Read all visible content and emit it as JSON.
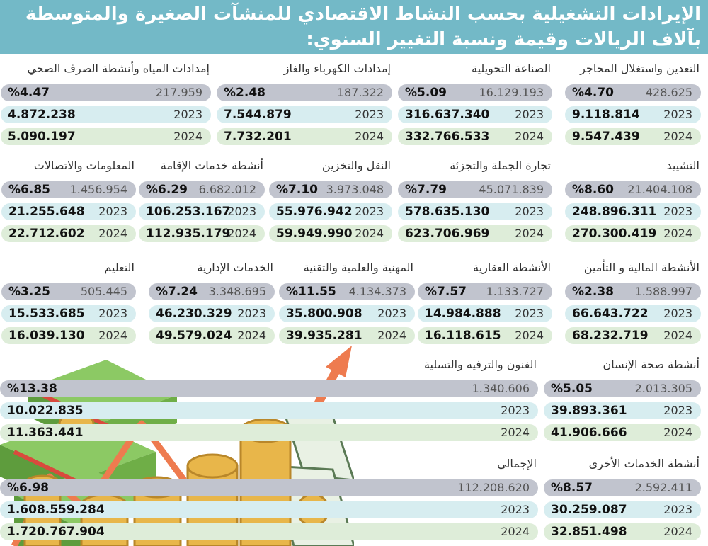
{
  "title": "الإيرادات التشغيلية بحسب النشاط الاقتصادي للمنشآت الصغيرة والمتوسطة بآلاف الريالات وقيمة ونسبة التغيير السنوي:",
  "chart_data": {
    "type": "table",
    "title": "الإيرادات التشغيلية بحسب النشاط الاقتصادي للمنشآت الصغيرة والمتوسطة بآلاف الريالات وقيمة ونسبة التغيير السنوي:",
    "years": [
      "2023",
      "2024"
    ],
    "sectors": [
      {
        "name": "التعدين واستغلال المحاجر",
        "v2023": "9.118.814",
        "v2024": "9.547.439",
        "change": "428.625",
        "pct": "%4.70"
      },
      {
        "name": "الصناعة التحويلية",
        "v2023": "316.637.340",
        "v2024": "332.766.533",
        "change": "16.129.193",
        "pct": "%5.09"
      },
      {
        "name": "إمدادات الكهرباء والغاز",
        "v2023": "7.544.879",
        "v2024": "7.732.201",
        "change": "187.322",
        "pct": "%2.48"
      },
      {
        "name": "إمدادات المياه وأنشطة الصرف الصحي",
        "v2023": "4.872.238",
        "v2024": "5.090.197",
        "change": "217.959",
        "pct": "%4.47"
      },
      {
        "name": "التشييد",
        "v2023": "248.896.311",
        "v2024": "270.300.419",
        "change": "21.404.108",
        "pct": "%8.60"
      },
      {
        "name": "تجارة الجملة والتجزئة",
        "v2023": "578.635.130",
        "v2024": "623.706.969",
        "change": "45.071.839",
        "pct": "%7.79"
      },
      {
        "name": "النقل والتخزين",
        "v2023": "55.976.942",
        "v2024": "59.949.990",
        "change": "3.973.048",
        "pct": "%7.10"
      },
      {
        "name": "أنشطة خدمات الإقامة",
        "v2023": "106.253.167",
        "v2024": "112.935.179",
        "change": "6.682.012",
        "pct": "%6.29"
      },
      {
        "name": "المعلومات والاتصالات",
        "v2023": "21.255.648",
        "v2024": "22.712.602",
        "change": "1.456.954",
        "pct": "%6.85"
      },
      {
        "name": "الأنشطة المالية و التأمين",
        "v2023": "66.643.722",
        "v2024": "68.232.719",
        "change": "1.588.997",
        "pct": "%2.38"
      },
      {
        "name": "الأنشطة العقارية",
        "v2023": "14.984.888",
        "v2024": "16.118.615",
        "change": "1.133.727",
        "pct": "%7.57"
      },
      {
        "name": "المهنية والعلمية والتقنية",
        "v2023": "35.800.908",
        "v2024": "39.935.281",
        "change": "4.134.373",
        "pct": "%11.55"
      },
      {
        "name": "الخدمات الإدارية",
        "v2023": "46.230.329",
        "v2024": "49.579.024",
        "change": "3.348.695",
        "pct": "%7.24"
      },
      {
        "name": "التعليم",
        "v2023": "15.533.685",
        "v2024": "16.039.130",
        "change": "505.445",
        "pct": "%3.25"
      },
      {
        "name": "أنشطة صحة الإنسان",
        "v2023": "39.893.361",
        "v2024": "41.906.666",
        "change": "2.013.305",
        "pct": "%5.05"
      },
      {
        "name": "الفنون والترفيه والتسلية",
        "v2023": "10.022.835",
        "v2024": "11.363.441",
        "change": "1.340.606",
        "pct": "%13.38"
      },
      {
        "name": "أنشطة الخدمات الأخرى",
        "v2023": "30.259.087",
        "v2024": "32.851.498",
        "change": "2.592.411",
        "pct": "%8.57"
      },
      {
        "name": "الإجمالي",
        "v2023": "1.608.559.284",
        "v2024": "1.720.767.904",
        "change": "112.208.620",
        "pct": "%6.98"
      }
    ]
  },
  "colors": {
    "title_band": "#73b9c7",
    "change_row": "#c1c4ce",
    "row_2023": "#d7edf0",
    "row_2024": "#deedd9",
    "arrow": "#ee7b4f",
    "money_green": "#7fbf55",
    "coin_gold": "#e8b64a"
  },
  "decoration": [
    "money-stack-icon",
    "gold-coins-icon",
    "banknote-icon",
    "growth-arrow-icon"
  ]
}
